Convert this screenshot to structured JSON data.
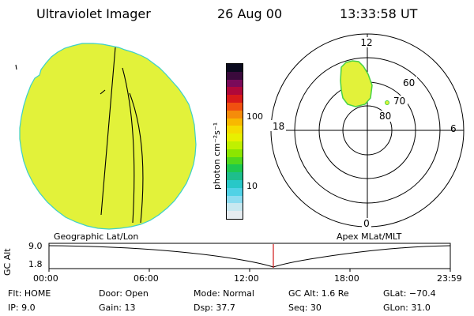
{
  "header": {
    "instrument": "Ultraviolet Imager",
    "date": "26 Aug 00",
    "time": "13:33:58 UT"
  },
  "colorbar": {
    "unit_label": "photon cm⁻²s⁻¹",
    "tick_labels": [
      "100",
      "10"
    ],
    "colors": [
      "#0a0a1e",
      "#3a0a3c",
      "#7a0a5a",
      "#b0083a",
      "#d81a1a",
      "#f05010",
      "#f58c0a",
      "#f8b800",
      "#f5dc00",
      "#e8f000",
      "#c0f000",
      "#8ce600",
      "#50d81e",
      "#1ec850",
      "#1ebe8c",
      "#28c8c8",
      "#50d2e6",
      "#8cdcf0",
      "#c8e8f0",
      "#e6ecf0"
    ]
  },
  "left_map": {
    "fill_color": "#e2f23a",
    "edge_color": "#3cd0c8"
  },
  "polar_plot": {
    "mlt_labels": {
      "top": "12",
      "left": "18",
      "right": "6",
      "bottom": "0"
    },
    "lat_labels": [
      "60",
      "70",
      "80"
    ],
    "blob_color": "#e2f23a",
    "blob_edge_color": "#46d246"
  },
  "timeline": {
    "left_title": "Geographic Lat/Lon",
    "right_title": "Apex MLat/MLT",
    "axis_name": "GC Alt",
    "y_tick_labels": [
      "9.0",
      "1.8"
    ],
    "x_tick_labels": [
      "00:00",
      "06:00",
      "12:00",
      "18:00",
      "23:59"
    ],
    "marker_color": "#d01818"
  },
  "footer": {
    "flt": "Flt: HOME",
    "ip": "IP:  9.0",
    "door": "Door: Open",
    "gain": "Gain: 13",
    "mode": "Mode: Normal",
    "dsp": "Dsp:   37.7",
    "gc_alt": "GC Alt: 1.6 Re",
    "seq": "Seq: 30",
    "glat": "GLat: −70.4",
    "glon": "GLon:  31.0"
  }
}
